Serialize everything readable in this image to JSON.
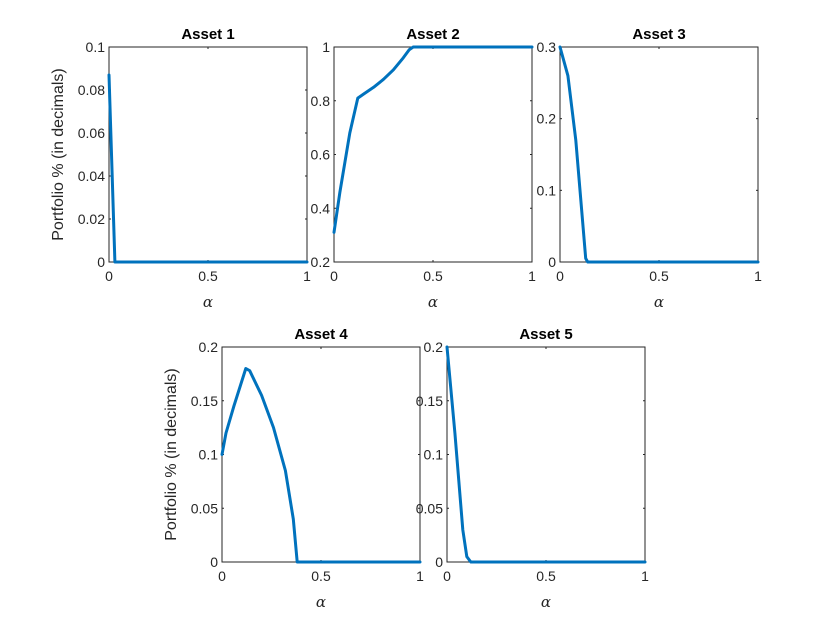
{
  "chart_data": [
    {
      "type": "line",
      "title": "Asset 1",
      "xlabel": "α",
      "ylabel": "Portfolio % (in decimals)",
      "xlim": [
        0,
        1
      ],
      "ylim": [
        0,
        0.1
      ],
      "xticks": [
        0,
        0.5,
        1
      ],
      "xtick_labels": [
        "0",
        "0.5",
        "1"
      ],
      "yticks": [
        0,
        0.02,
        0.04,
        0.06,
        0.08,
        0.1
      ],
      "ytick_labels": [
        "0",
        "0.02",
        "0.04",
        "0.06",
        "0.08",
        "0.1"
      ],
      "grid": false,
      "color": "#0072BD",
      "x": [
        0,
        0.03,
        0.05,
        1
      ],
      "y": [
        0.087,
        0,
        0,
        0
      ]
    },
    {
      "type": "line",
      "title": "Asset 2",
      "xlabel": "α",
      "ylabel": "",
      "xlim": [
        0,
        1
      ],
      "ylim": [
        0.2,
        1
      ],
      "xticks": [
        0,
        0.5,
        1
      ],
      "xtick_labels": [
        "0",
        "0.5",
        "1"
      ],
      "yticks": [
        0.2,
        0.4,
        0.6,
        0.8,
        1
      ],
      "ytick_labels": [
        "0.2",
        "0.4",
        "0.6",
        "0.8",
        "1"
      ],
      "grid": false,
      "color": "#0072BD",
      "x": [
        0,
        0.03,
        0.08,
        0.12,
        0.15,
        0.2,
        0.25,
        0.3,
        0.35,
        0.38,
        0.4,
        1
      ],
      "y": [
        0.31,
        0.46,
        0.68,
        0.81,
        0.825,
        0.85,
        0.88,
        0.915,
        0.96,
        0.99,
        1,
        1
      ]
    },
    {
      "type": "line",
      "title": "Asset 3",
      "xlabel": "α",
      "ylabel": "",
      "xlim": [
        0,
        1
      ],
      "ylim": [
        0,
        0.3
      ],
      "xticks": [
        0,
        0.5,
        1
      ],
      "xtick_labels": [
        "0",
        "0.5",
        "1"
      ],
      "yticks": [
        0,
        0.1,
        0.2,
        0.3
      ],
      "ytick_labels": [
        "0",
        "0.1",
        "0.2",
        "0.3"
      ],
      "grid": false,
      "color": "#0072BD",
      "x": [
        0,
        0.04,
        0.08,
        0.11,
        0.13,
        0.14,
        1
      ],
      "y": [
        0.3,
        0.26,
        0.17,
        0.07,
        0.005,
        0,
        0
      ]
    },
    {
      "type": "line",
      "title": "Asset 4",
      "xlabel": "α",
      "ylabel": "Portfolio % (in decimals)",
      "xlim": [
        0,
        1
      ],
      "ylim": [
        0,
        0.2
      ],
      "xticks": [
        0,
        0.5,
        1
      ],
      "xtick_labels": [
        "0",
        "0.5",
        "1"
      ],
      "yticks": [
        0,
        0.05,
        0.1,
        0.15,
        0.2
      ],
      "ytick_labels": [
        "0",
        "0.05",
        "0.1",
        "0.15",
        "0.2"
      ],
      "grid": false,
      "color": "#0072BD",
      "x": [
        0,
        0.02,
        0.06,
        0.12,
        0.14,
        0.2,
        0.26,
        0.32,
        0.36,
        0.38,
        1
      ],
      "y": [
        0.1,
        0.12,
        0.145,
        0.18,
        0.178,
        0.155,
        0.125,
        0.085,
        0.04,
        0,
        0
      ]
    },
    {
      "type": "line",
      "title": "Asset 5",
      "xlabel": "α",
      "ylabel": "",
      "xlim": [
        0,
        1
      ],
      "ylim": [
        0,
        0.2
      ],
      "xticks": [
        0,
        0.5,
        1
      ],
      "xtick_labels": [
        "0",
        "0.5",
        "1"
      ],
      "yticks": [
        0,
        0.05,
        0.1,
        0.15,
        0.2
      ],
      "ytick_labels": [
        "0",
        "0.05",
        "0.1",
        "0.15",
        "0.2"
      ],
      "grid": false,
      "color": "#0072BD",
      "x": [
        0,
        0.04,
        0.08,
        0.1,
        0.12,
        1
      ],
      "y": [
        0.2,
        0.12,
        0.03,
        0.005,
        0,
        0
      ]
    }
  ]
}
